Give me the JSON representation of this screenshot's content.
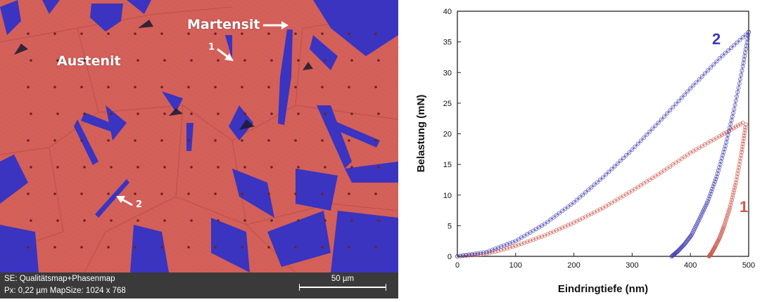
{
  "micrograph": {
    "labels": {
      "austenite": "Austenit",
      "martensite": "Martensit",
      "marker_1": "1",
      "marker_2": "2"
    },
    "info": {
      "line1": "SE: Qualitätsmap+Phasenmap",
      "line2": "Px: 0,22 µm  MapSize: 1024 x 768"
    },
    "scalebar": "50 µm",
    "colors": {
      "austenite": "#d4605a",
      "martensite": "#3a34c0",
      "info_bar": "#3a3a3a"
    }
  },
  "chart_data": {
    "type": "scatter",
    "xlabel": "Eindringtiefe (nm)",
    "ylabel": "Belastung (mN)",
    "xlim": [
      0,
      500
    ],
    "ylim": [
      0,
      40
    ],
    "xticks": [
      "0",
      "100",
      "200",
      "300",
      "400",
      "500"
    ],
    "yticks": [
      "0",
      "5",
      "10",
      "15",
      "20",
      "25",
      "30",
      "35",
      "40"
    ],
    "grid": false,
    "series": [
      {
        "name": "1",
        "color": "#cd5a4e",
        "loading": {
          "x": [
            0,
            50,
            100,
            150,
            200,
            250,
            300,
            350,
            400,
            450,
            490
          ],
          "y": [
            0,
            0.4,
            1.7,
            3.4,
            5.5,
            7.9,
            10.7,
            13.7,
            16.9,
            19.6,
            21.8
          ]
        },
        "unloading": {
          "x": [
            495,
            488,
            478,
            468,
            458,
            450,
            442,
            436,
            432
          ],
          "y": [
            21.5,
            17,
            12,
            8,
            5,
            3,
            1.5,
            0.5,
            0
          ]
        }
      },
      {
        "name": "2",
        "color": "#3b3ab0",
        "loading": {
          "x": [
            0,
            50,
            100,
            150,
            200,
            250,
            300,
            350,
            400,
            450,
            500
          ],
          "y": [
            0,
            0.7,
            2.5,
            5.3,
            8.8,
            12.9,
            17.4,
            22.3,
            27.4,
            32.3,
            36.6
          ]
        },
        "unloading": {
          "x": [
            500,
            490,
            475,
            460,
            445,
            430,
            415,
            402,
            390,
            378,
            368
          ],
          "y": [
            36.6,
            31,
            24,
            18,
            13,
            9,
            6,
            3.5,
            2,
            0.8,
            0
          ]
        }
      }
    ]
  }
}
